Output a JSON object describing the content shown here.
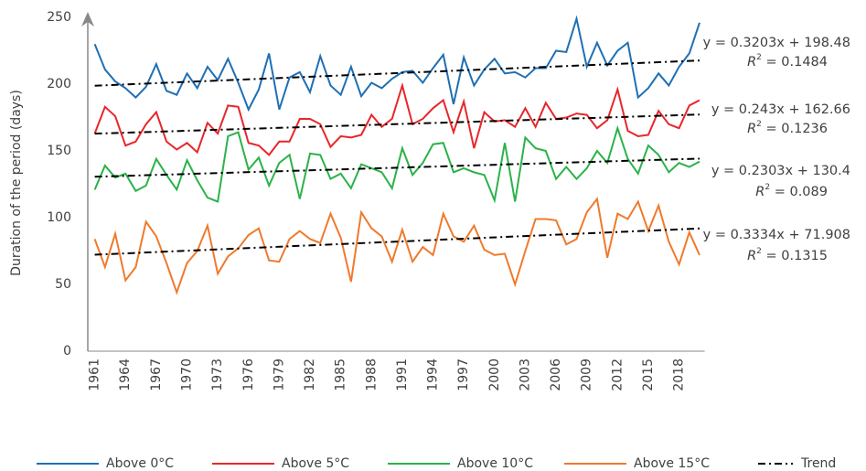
{
  "chart_data": {
    "type": "line",
    "y_label": "Duration of the period (days)",
    "ylim": [
      0,
      250
    ],
    "yticks": [
      0,
      50,
      100,
      150,
      200,
      250
    ],
    "categories": [
      "1961",
      null,
      null,
      "1964",
      null,
      null,
      "1967",
      null,
      null,
      "1970",
      null,
      null,
      "1973",
      null,
      null,
      "1976",
      null,
      null,
      "1979",
      null,
      null,
      "1982",
      null,
      null,
      "1985",
      null,
      null,
      "1988",
      null,
      null,
      "1991",
      null,
      null,
      "1994",
      null,
      null,
      "1997",
      null,
      null,
      "2000",
      null,
      null,
      "2003",
      null,
      null,
      "2006",
      null,
      null,
      "2009",
      null,
      null,
      "2012",
      null,
      null,
      "2015",
      null,
      null,
      "2018",
      null,
      null
    ],
    "series": [
      {
        "name": "Above 0°C",
        "color": "#1f6fb4",
        "values": [
          230,
          211,
          202,
          197,
          190,
          198,
          215,
          195,
          192,
          208,
          197,
          213,
          203,
          219,
          201,
          181,
          196,
          223,
          181,
          205,
          209,
          194,
          221,
          199,
          192,
          213,
          191,
          201,
          197,
          204,
          209,
          210,
          201,
          212,
          222,
          185,
          220,
          199,
          211,
          219,
          208,
          209,
          205,
          212,
          212,
          225,
          224,
          249,
          213,
          231,
          214,
          225,
          231,
          190,
          197,
          208,
          199,
          213,
          223,
          246
        ]
      },
      {
        "name": "Above 5°C",
        "color": "#e8262a",
        "values": [
          163,
          183,
          176,
          154,
          157,
          170,
          179,
          157,
          151,
          156,
          149,
          171,
          163,
          184,
          183,
          156,
          154,
          147,
          157,
          157,
          174,
          174,
          170,
          153,
          161,
          160,
          162,
          177,
          168,
          174,
          199,
          170,
          174,
          182,
          188,
          164,
          187,
          152,
          179,
          172,
          173,
          168,
          182,
          168,
          186,
          174,
          175,
          178,
          177,
          167,
          173,
          196,
          165,
          161,
          162,
          180,
          170,
          167,
          184,
          188
        ]
      },
      {
        "name": "Above 10°C",
        "color": "#2bb24a",
        "values": [
          121,
          139,
          130,
          133,
          120,
          124,
          144,
          132,
          121,
          143,
          128,
          115,
          112,
          161,
          164,
          136,
          145,
          124,
          141,
          147,
          114,
          148,
          147,
          129,
          133,
          122,
          140,
          137,
          134,
          122,
          152,
          132,
          141,
          155,
          156,
          134,
          137,
          134,
          132,
          113,
          156,
          112,
          160,
          152,
          150,
          129,
          138,
          129,
          137,
          150,
          141,
          167,
          144,
          133,
          154,
          147,
          134,
          141,
          138,
          142
        ]
      },
      {
        "name": "Above 15°C",
        "color": "#ef7a2c",
        "values": [
          84,
          63,
          88,
          53,
          63,
          97,
          86,
          66,
          44,
          66,
          75,
          94,
          58,
          71,
          77,
          87,
          92,
          68,
          67,
          84,
          90,
          84,
          81,
          103,
          85,
          52,
          104,
          92,
          86,
          67,
          91,
          67,
          78,
          72,
          103,
          86,
          82,
          94,
          76,
          72,
          73,
          50,
          75,
          99,
          99,
          98,
          80,
          84,
          104,
          114,
          70,
          103,
          99,
          112,
          90,
          109,
          82,
          65,
          89,
          72
        ]
      }
    ],
    "trend": {
      "name": "Trend",
      "color": "#000000",
      "lines": [
        {
          "slope": 0.3203,
          "intercept": 198.48,
          "equation": "y = 0.3203x + 198.48",
          "r2_symbol": "R",
          "r2_power": "2",
          "r2_text": " = 0.1484"
        },
        {
          "slope": 0.243,
          "intercept": 162.66,
          "equation": "y = 0.243x + 162.66",
          "r2_symbol": "R",
          "r2_power": "2",
          "r2_text": " = 0.1236"
        },
        {
          "slope": 0.2303,
          "intercept": 130.4,
          "equation": "y = 0.2303x + 130.4",
          "r2_symbol": "R",
          "r2_power": "2",
          "r2_text": " = 0.089"
        },
        {
          "slope": 0.3334,
          "intercept": 71.908,
          "equation": "y = 0.3334x + 71.908",
          "r2_symbol": "R",
          "r2_power": "2",
          "r2_text": " = 0.1315"
        }
      ]
    }
  }
}
